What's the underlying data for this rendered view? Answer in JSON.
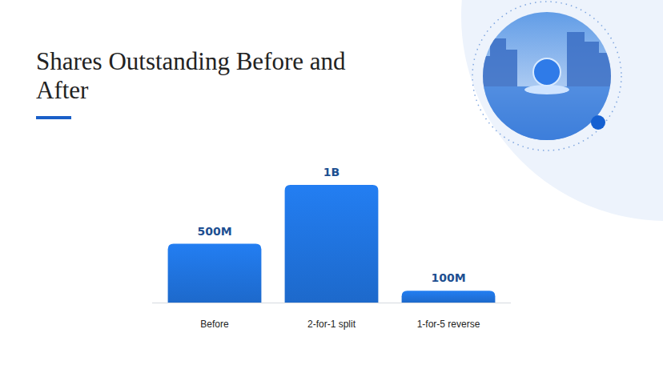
{
  "chart_data": {
    "type": "bar",
    "title": "Shares Outstanding Before and After",
    "categories": [
      "Before",
      "2-for-1 split",
      "1-for-5 reverse"
    ],
    "values": [
      500000000,
      1000000000,
      100000000
    ],
    "value_labels": [
      "500M",
      "1B",
      "100M"
    ],
    "color": "#1f6fd6",
    "ylim": [
      0,
      1000000000
    ],
    "data_labels": true,
    "tick_labels": "x"
  }
}
